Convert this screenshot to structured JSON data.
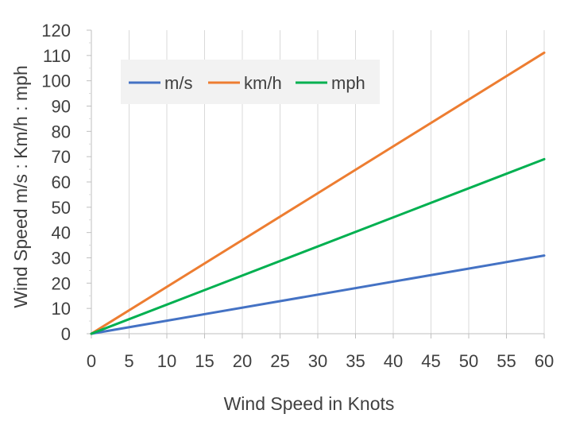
{
  "chart_data": {
    "type": "line",
    "xlabel": "Wind Speed in Knots",
    "ylabel": "Wind Speed m/s : Km/h : mph",
    "xlim": [
      0,
      60
    ],
    "ylim": [
      0,
      120
    ],
    "xticks": [
      0,
      5,
      10,
      15,
      20,
      25,
      30,
      35,
      40,
      45,
      50,
      55,
      60
    ],
    "yticks": [
      0,
      10,
      20,
      30,
      40,
      50,
      60,
      70,
      80,
      90,
      100,
      110,
      120
    ],
    "grid": "vertical",
    "legend_position": "top-left",
    "series": [
      {
        "name": "m/s",
        "color": "#4472C4",
        "x": [
          0,
          60
        ],
        "y": [
          0,
          30.9
        ]
      },
      {
        "name": "km/h",
        "color": "#ED7D31",
        "x": [
          0,
          60
        ],
        "y": [
          0,
          111.1
        ]
      },
      {
        "name": "mph",
        "color": "#00B050",
        "x": [
          0,
          60
        ],
        "y": [
          0,
          69
        ]
      }
    ]
  }
}
